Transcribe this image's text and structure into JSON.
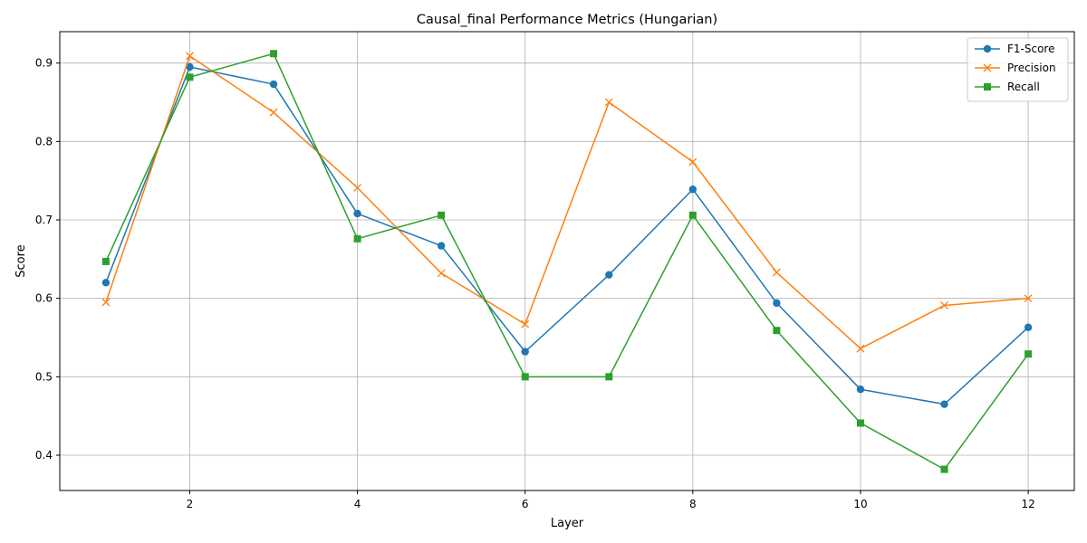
{
  "chart_data": {
    "type": "line",
    "title": "Causal_final Performance Metrics (Hungarian)",
    "xlabel": "Layer",
    "ylabel": "Score",
    "x": [
      1,
      2,
      3,
      4,
      5,
      6,
      7,
      8,
      9,
      10,
      11,
      12
    ],
    "xlim": [
      0.45,
      12.55
    ],
    "ylim": [
      0.355,
      0.94
    ],
    "xticks": [
      2,
      4,
      6,
      8,
      10,
      12
    ],
    "yticks": [
      0.4,
      0.5,
      0.6,
      0.7,
      0.8,
      0.9
    ],
    "xtick_labels": [
      "2",
      "4",
      "6",
      "8",
      "10",
      "12"
    ],
    "ytick_labels": [
      "0.4",
      "0.5",
      "0.6",
      "0.7",
      "0.8",
      "0.9"
    ],
    "grid": true,
    "legend_position": "top-right",
    "series": [
      {
        "name": "F1-Score",
        "color": "#1f77b4",
        "marker": "circle",
        "values": [
          0.62,
          0.895,
          0.873,
          0.708,
          0.667,
          0.532,
          0.63,
          0.739,
          0.594,
          0.484,
          0.465,
          0.563
        ]
      },
      {
        "name": "Precision",
        "color": "#ff7f0e",
        "marker": "x",
        "values": [
          0.595,
          0.909,
          0.837,
          0.741,
          0.632,
          0.567,
          0.85,
          0.774,
          0.633,
          0.536,
          0.591,
          0.6
        ]
      },
      {
        "name": "Recall",
        "color": "#2ca02c",
        "marker": "square",
        "values": [
          0.647,
          0.882,
          0.912,
          0.676,
          0.706,
          0.5,
          0.5,
          0.706,
          0.559,
          0.441,
          0.382,
          0.529
        ]
      }
    ]
  }
}
